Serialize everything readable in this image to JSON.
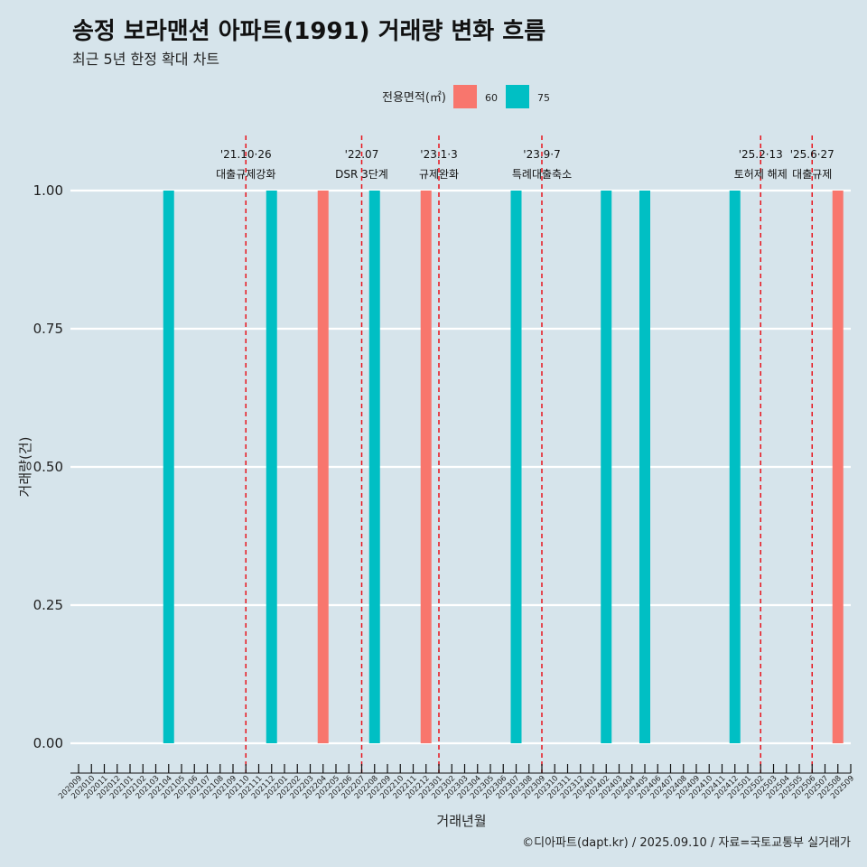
{
  "header": {
    "title": "송정 보라맨션 아파트(1991) 거래량 변화 흐름",
    "subtitle": "최근 5년 한정 확대 차트"
  },
  "caption": "©디아파트(dapt.kr) / 2025.09.10 / 자료=국토교통부 실거래가",
  "chart_data": {
    "type": "bar",
    "xlabel": "거래년월",
    "ylabel": "거래량(건)",
    "ylim": [
      0,
      1
    ],
    "yticks": [
      "0.00",
      "0.25",
      "0.50",
      "0.75",
      "1.00"
    ],
    "grid": true,
    "legend": {
      "title": "전용면적(㎡)",
      "placement": "top"
    },
    "categories": [
      "202009",
      "202010",
      "202011",
      "202012",
      "202101",
      "202102",
      "202103",
      "202104",
      "202105",
      "202106",
      "202107",
      "202108",
      "202109",
      "202110",
      "202111",
      "202112",
      "202201",
      "202202",
      "202203",
      "202204",
      "202205",
      "202206",
      "202207",
      "202208",
      "202209",
      "202210",
      "202211",
      "202212",
      "202301",
      "202302",
      "202303",
      "202304",
      "202305",
      "202306",
      "202307",
      "202308",
      "202309",
      "202310",
      "202311",
      "202312",
      "202401",
      "202402",
      "202403",
      "202404",
      "202405",
      "202406",
      "202407",
      "202408",
      "202409",
      "202410",
      "202411",
      "202412",
      "202501",
      "202502",
      "202503",
      "202504",
      "202505",
      "202506",
      "202507",
      "202508",
      "202509"
    ],
    "series": [
      {
        "name": "60",
        "color": "#f8766d",
        "points": [
          {
            "x": "202204",
            "y": 1
          },
          {
            "x": "202212",
            "y": 1
          },
          {
            "x": "202508",
            "y": 1
          }
        ]
      },
      {
        "name": "75",
        "color": "#00bfc4",
        "points": [
          {
            "x": "202104",
            "y": 1
          },
          {
            "x": "202112",
            "y": 1
          },
          {
            "x": "202208",
            "y": 1
          },
          {
            "x": "202307",
            "y": 1
          },
          {
            "x": "202402",
            "y": 1
          },
          {
            "x": "202405",
            "y": 1
          },
          {
            "x": "202412",
            "y": 1
          }
        ]
      }
    ],
    "events": [
      {
        "x": "202110",
        "date": "'21.10·26",
        "label": "대출규제강화"
      },
      {
        "x": "202207",
        "date": "'22.07",
        "label": "DSR 3단계"
      },
      {
        "x": "202301",
        "date": "'23.1·3",
        "label": "규제완화"
      },
      {
        "x": "202309",
        "date": "'23.9·7",
        "label": "특례대출축소"
      },
      {
        "x": "202502",
        "date": "'25.2·13",
        "label": "토허제 해제"
      },
      {
        "x": "202506",
        "date": "'25.6·27",
        "label": "대출규제"
      }
    ]
  }
}
